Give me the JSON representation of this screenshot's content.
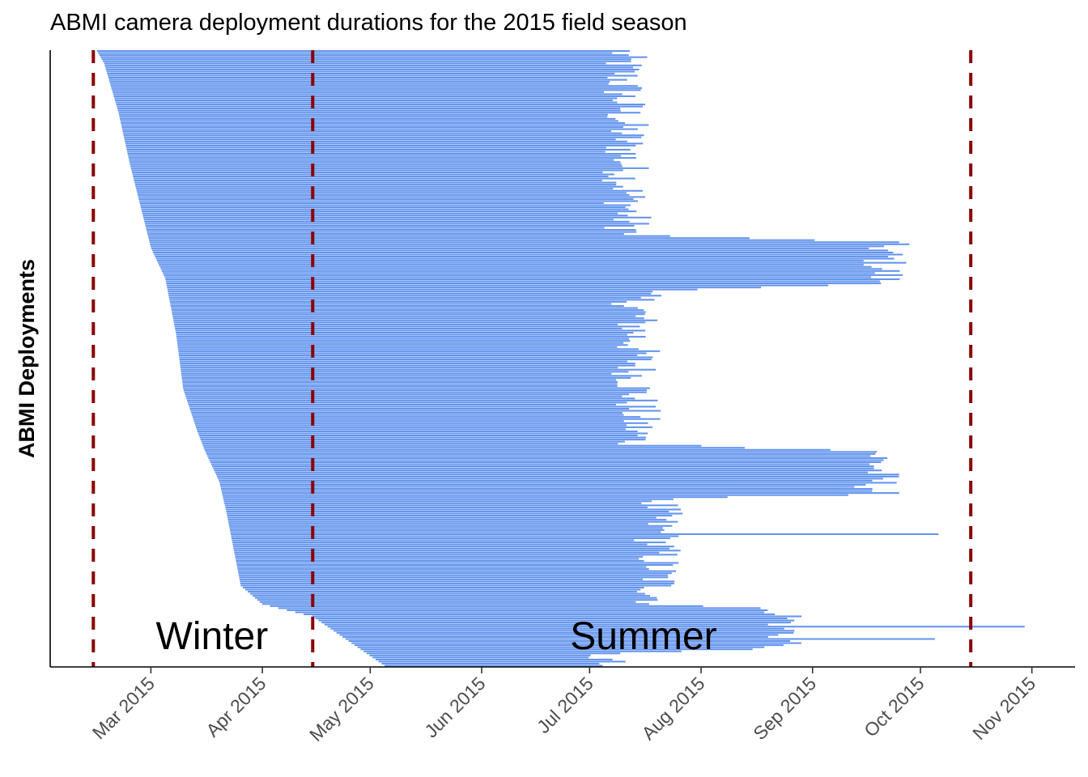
{
  "chart_data": {
    "type": "gantt",
    "title": "ABMI camera deployment durations for the 2015 field season",
    "xlabel": "",
    "ylabel": "ABMI Deployments",
    "x_axis": {
      "type": "date",
      "min": "2015-02-01",
      "max": "2015-11-13",
      "ticks": [
        {
          "date": "2015-03-01",
          "label": "Mar 2015"
        },
        {
          "date": "2015-04-01",
          "label": "Apr 2015"
        },
        {
          "date": "2015-05-01",
          "label": "May 2015"
        },
        {
          "date": "2015-06-01",
          "label": "Jun 2015"
        },
        {
          "date": "2015-07-01",
          "label": "Jul 2015"
        },
        {
          "date": "2015-08-01",
          "label": "Aug 2015"
        },
        {
          "date": "2015-09-01",
          "label": "Sep 2015"
        },
        {
          "date": "2015-10-01",
          "label": "Oct 2015"
        },
        {
          "date": "2015-11-01",
          "label": "Nov 2015"
        }
      ]
    },
    "bar_color": "#6495ED",
    "reference_line_color": "#8B0000",
    "reference_lines": [
      "2015-02-13",
      "2015-04-15",
      "2015-10-15"
    ],
    "annotations": [
      {
        "text": "Winter",
        "date": "2015-03-18"
      },
      {
        "text": "Summer",
        "date": "2015-07-16"
      }
    ],
    "grid": false,
    "legend": "none",
    "n_deployments": 300,
    "start_profile": [
      [
        0.0,
        "2015-02-14"
      ],
      [
        0.02,
        "2015-02-16"
      ],
      [
        0.1,
        "2015-02-20"
      ],
      [
        0.18,
        "2015-02-23"
      ],
      [
        0.25,
        "2015-02-26"
      ],
      [
        0.32,
        "2015-03-01"
      ],
      [
        0.37,
        "2015-03-05"
      ],
      [
        0.46,
        "2015-03-08"
      ],
      [
        0.55,
        "2015-03-10"
      ],
      [
        0.62,
        "2015-03-14"
      ],
      [
        0.65,
        "2015-03-16"
      ],
      [
        0.7,
        "2015-03-20"
      ],
      [
        0.75,
        "2015-03-22"
      ],
      [
        0.81,
        "2015-03-24"
      ],
      [
        0.87,
        "2015-03-26"
      ],
      [
        0.9,
        "2015-04-01"
      ],
      [
        0.92,
        "2015-04-15"
      ],
      [
        0.94,
        "2015-04-20"
      ],
      [
        0.96,
        "2015-04-25"
      ],
      [
        0.98,
        "2015-04-30"
      ],
      [
        1.0,
        "2015-05-05"
      ]
    ],
    "end_profile": [
      [
        0.0,
        "2015-07-10"
      ],
      [
        0.3,
        "2015-07-12"
      ],
      [
        0.31,
        "2015-09-21"
      ],
      [
        0.38,
        "2015-09-21"
      ],
      [
        0.39,
        "2015-07-14"
      ],
      [
        0.64,
        "2015-07-14"
      ],
      [
        0.65,
        "2015-09-19"
      ],
      [
        0.72,
        "2015-09-19"
      ],
      [
        0.73,
        "2015-07-20"
      ],
      [
        0.9,
        "2015-07-20"
      ],
      [
        0.91,
        "2015-08-25"
      ],
      [
        0.97,
        "2015-08-25"
      ],
      [
        0.98,
        "2015-07-05"
      ],
      [
        1.0,
        "2015-07-05"
      ]
    ],
    "notable_ends": [
      {
        "row_fraction": 0.785,
        "end": "2015-10-06"
      },
      {
        "row_fraction": 0.935,
        "end": "2015-10-30"
      },
      {
        "row_fraction": 0.955,
        "end": "2015-10-05"
      }
    ]
  }
}
